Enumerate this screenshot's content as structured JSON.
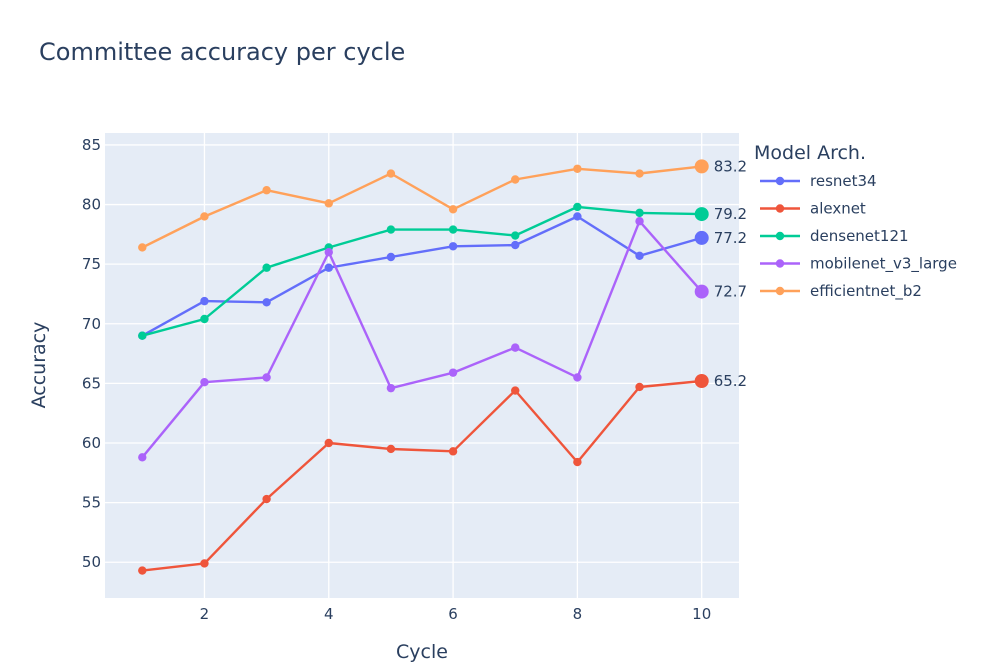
{
  "chart_data": {
    "type": "line",
    "title": "Committee accuracy per cycle",
    "xlabel": "Cycle",
    "ylabel": "Accuracy",
    "x": [
      1,
      2,
      3,
      4,
      5,
      6,
      7,
      8,
      9,
      10
    ],
    "xlim": [
      0.4,
      10.6
    ],
    "ylim": [
      47,
      86
    ],
    "x_ticks": [
      2,
      4,
      6,
      8,
      10
    ],
    "y_ticks": [
      50,
      55,
      60,
      65,
      70,
      75,
      80,
      85
    ],
    "grid": true,
    "legend": {
      "title": "Model Arch.",
      "position": "right"
    },
    "series": [
      {
        "name": "resnet34",
        "color": "#636efa",
        "values": [
          69.0,
          71.9,
          71.8,
          74.7,
          75.6,
          76.5,
          76.6,
          79.0,
          75.7,
          77.2
        ],
        "end_label": "77.2"
      },
      {
        "name": "alexnet",
        "color": "#ef553b",
        "values": [
          49.3,
          49.9,
          55.3,
          60.0,
          59.5,
          59.3,
          64.4,
          58.4,
          64.7,
          65.2
        ],
        "end_label": "65.2"
      },
      {
        "name": "densenet121",
        "color": "#00cc96",
        "values": [
          69.0,
          70.4,
          74.7,
          76.4,
          77.9,
          77.9,
          77.4,
          79.8,
          79.3,
          79.2
        ],
        "end_label": "79.2"
      },
      {
        "name": "mobilenet_v3_large",
        "color": "#ab63fa",
        "values": [
          58.8,
          65.1,
          65.5,
          76.0,
          64.6,
          65.9,
          68.0,
          65.5,
          78.6,
          72.7
        ],
        "end_label": "72.7"
      },
      {
        "name": "efficientnet_b2",
        "color": "#ffa15a",
        "values": [
          76.4,
          79.0,
          81.2,
          80.1,
          82.6,
          79.6,
          82.1,
          83.0,
          82.6,
          83.2
        ],
        "end_label": "83.2"
      }
    ]
  }
}
